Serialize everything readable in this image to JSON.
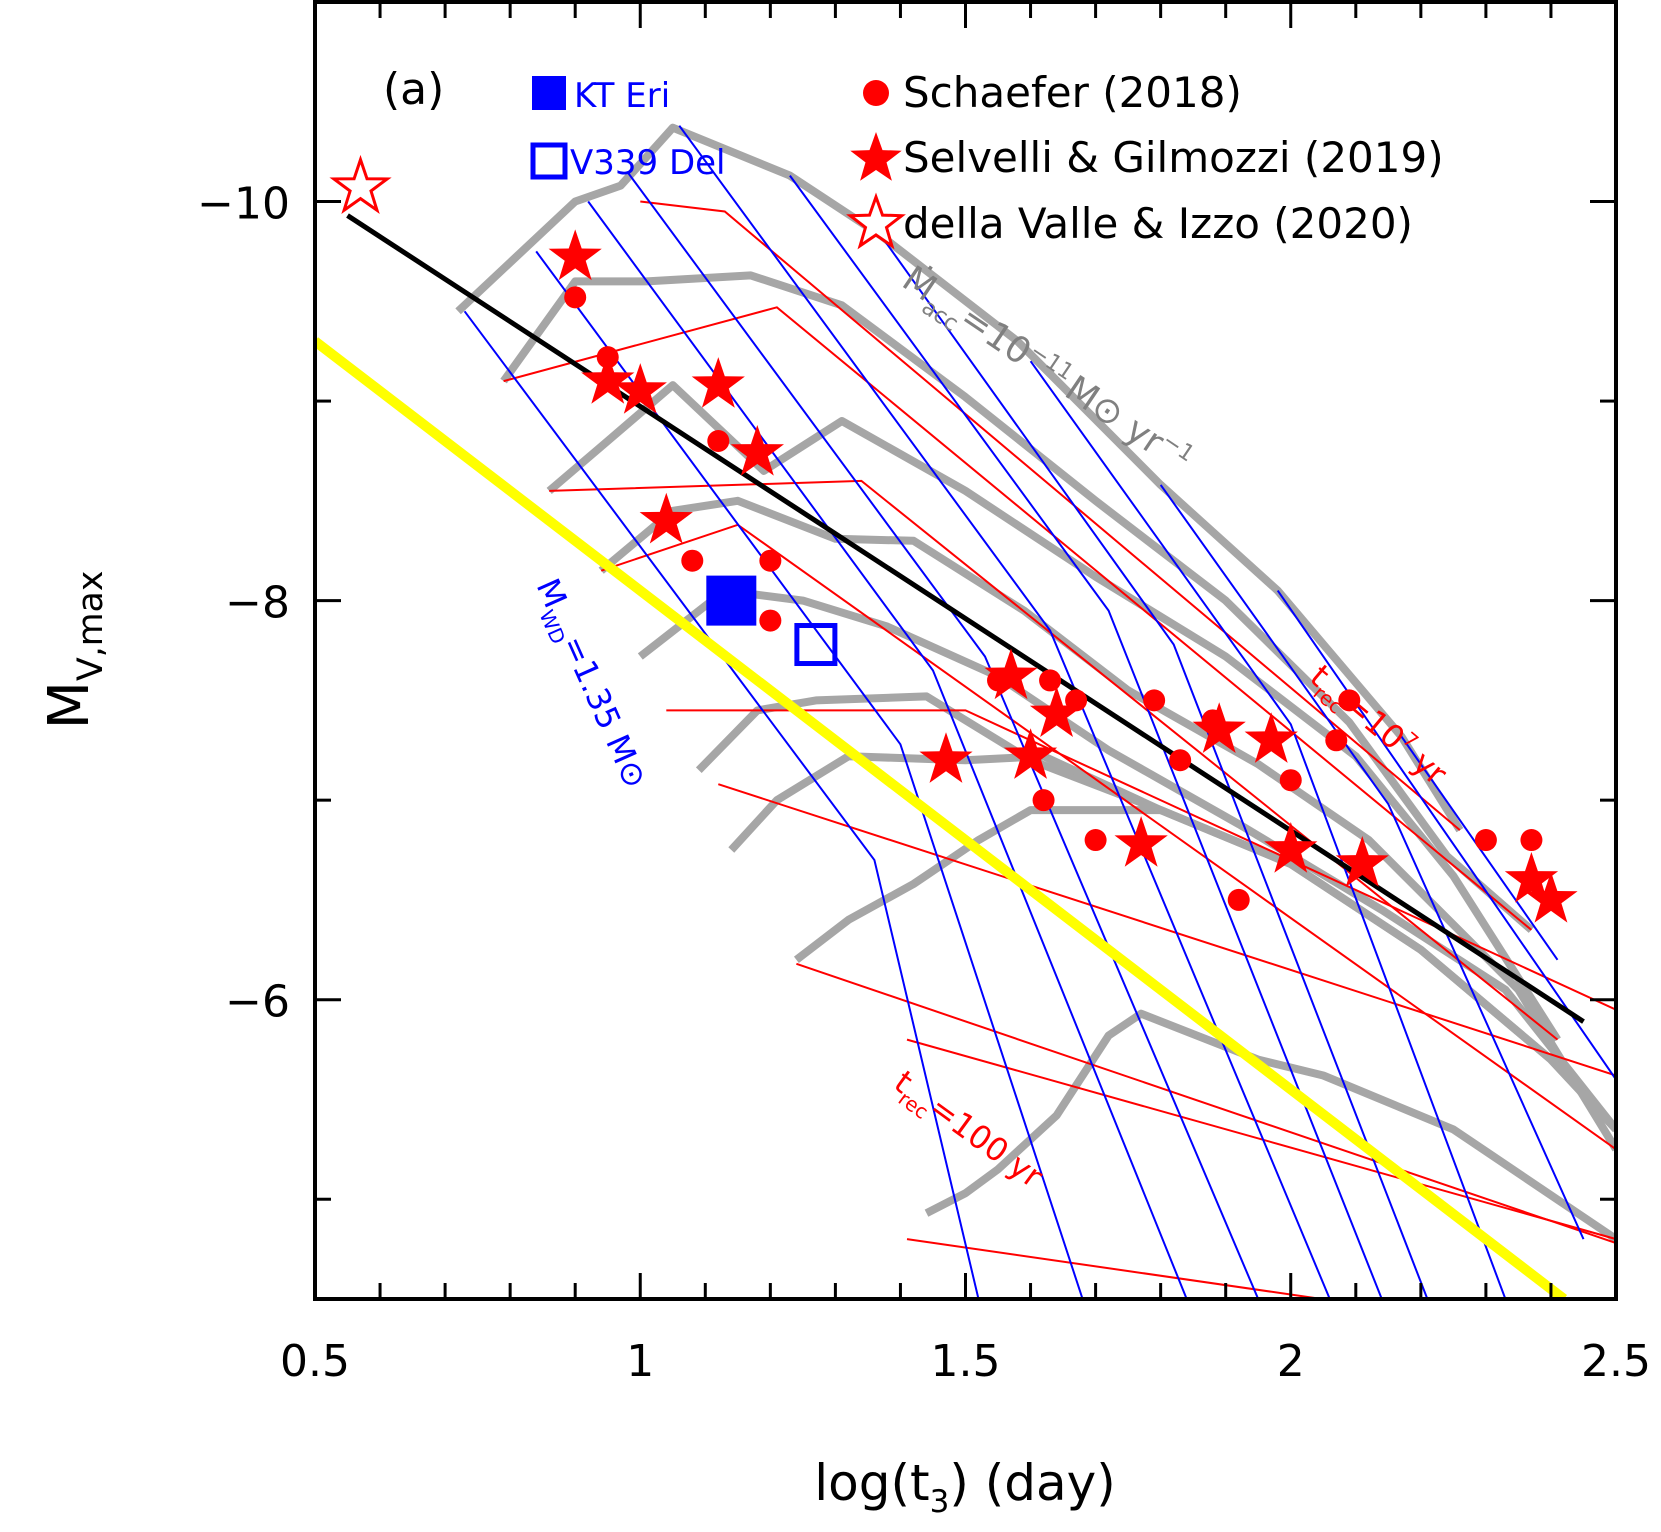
{
  "chart_data": {
    "type": "scatter",
    "panel_label": "(a)",
    "xlabel": "log(t",
    "xlabel_sub": "3",
    "xlabel_tail": ") (day)",
    "ylabel": "M",
    "ylabel_sub": "V,max",
    "xlim": [
      0.5,
      2.5
    ],
    "ylim": [
      -4.5,
      -11.0
    ],
    "y_inverted": true,
    "xticks": [
      0.5,
      1,
      1.5,
      2,
      2.5
    ],
    "xtick_labels": [
      "0.5",
      "1",
      "1.5",
      "2",
      "2.5"
    ],
    "yticks": [
      -10,
      -8,
      -6
    ],
    "ytick_labels": [
      "−10",
      "−8",
      "−6"
    ],
    "legend": {
      "kt_eri": "KT Eri",
      "v339_del": "V339 Del",
      "schaefer": "Schaefer (2018)",
      "selvelli": "Selvelli & Gilmozzi (2019)",
      "della_valle": "della Valle & Izzo (2020)"
    },
    "annotations": {
      "mdot_main": "Ṁ",
      "mdot_sub": "acc",
      "mdot_tail": "=10",
      "mdot_exp": "−11",
      "mdot_unit": "M⊙ yr",
      "mdot_unit_exp": "−1",
      "mwd_main": "M",
      "mwd_sub": "WD",
      "mwd_tail": "=1.35 M⊙",
      "trec_hi_main": "t",
      "trec_hi_sub": "rec",
      "trec_hi_tail": "=10",
      "trec_hi_exp": "7",
      "trec_hi_unit": " yr",
      "trec_lo_main": "t",
      "trec_lo_sub": "rec",
      "trec_lo_tail": "=100 yr"
    },
    "colors": {
      "schaefer": "#ff0000",
      "selvelli": "#ff0000",
      "della_valle": "#ff0000",
      "kt_eri": "#0000ff",
      "v339_del": "#0000ff",
      "fit_line": "#000000",
      "yellow_line": "#ffff00",
      "accretion_grid": "#a6a6a6",
      "wd_mass_grid": "#0000ff",
      "recurrence_grid": "#ff0000"
    },
    "series": [
      {
        "name": "Schaefer (2018)",
        "marker": "filled-circle",
        "points": [
          [
            0.9,
            -9.52
          ],
          [
            0.95,
            -9.22
          ],
          [
            1.12,
            -8.8
          ],
          [
            1.08,
            -8.2
          ],
          [
            1.2,
            -8.2
          ],
          [
            1.2,
            -7.9
          ],
          [
            1.55,
            -7.6
          ],
          [
            1.63,
            -7.6
          ],
          [
            1.67,
            -7.5
          ],
          [
            1.62,
            -7.0
          ],
          [
            1.7,
            -6.8
          ],
          [
            1.79,
            -7.5
          ],
          [
            1.83,
            -7.2
          ],
          [
            1.88,
            -7.4
          ],
          [
            1.92,
            -6.5
          ],
          [
            2.0,
            -7.1
          ],
          [
            2.07,
            -7.3
          ],
          [
            2.09,
            -7.5
          ],
          [
            2.3,
            -6.8
          ],
          [
            2.37,
            -6.8
          ]
        ]
      },
      {
        "name": "Selvelli & Gilmozzi (2019)",
        "marker": "filled-star",
        "points": [
          [
            0.9,
            -9.72
          ],
          [
            0.95,
            -9.1
          ],
          [
            1.0,
            -9.05
          ],
          [
            1.12,
            -9.08
          ],
          [
            1.18,
            -8.74
          ],
          [
            1.04,
            -8.4
          ],
          [
            1.57,
            -7.62
          ],
          [
            1.47,
            -7.2
          ],
          [
            1.6,
            -7.22
          ],
          [
            1.64,
            -7.43
          ],
          [
            1.77,
            -6.78
          ],
          [
            1.89,
            -7.35
          ],
          [
            1.97,
            -7.3
          ],
          [
            2.0,
            -6.75
          ],
          [
            2.11,
            -6.68
          ],
          [
            2.37,
            -6.6
          ],
          [
            2.4,
            -6.5
          ]
        ]
      },
      {
        "name": "della Valle & Izzo (2020)",
        "marker": "open-star",
        "points": [
          [
            0.57,
            -10.07
          ]
        ]
      },
      {
        "name": "KT Eri",
        "marker": "filled-square",
        "points": [
          [
            1.14,
            -8.0
          ]
        ]
      },
      {
        "name": "V339 Del",
        "marker": "open-square",
        "points": [
          [
            1.27,
            -7.78
          ]
        ]
      }
    ],
    "fit_line": [
      [
        0.55,
        -9.93
      ],
      [
        2.45,
        -5.89
      ]
    ],
    "yellow_line": [
      [
        0.5,
        -9.3
      ],
      [
        2.42,
        -4.5
      ]
    ],
    "accretion_curves": [
      [
        [
          0.72,
          -9.45
        ],
        [
          0.9,
          -10.0
        ],
        [
          0.97,
          -10.08
        ],
        [
          1.05,
          -10.37
        ],
        [
          1.23,
          -10.13
        ],
        [
          1.37,
          -9.83
        ],
        [
          1.58,
          -9.3
        ],
        [
          1.8,
          -8.58
        ],
        [
          1.98,
          -8.05
        ],
        [
          2.17,
          -7.32
        ],
        [
          2.26,
          -6.85
        ]
      ],
      [
        [
          0.79,
          -9.1
        ],
        [
          0.9,
          -9.6
        ],
        [
          1.01,
          -9.6
        ],
        [
          1.17,
          -9.63
        ],
        [
          1.31,
          -9.48
        ],
        [
          1.5,
          -9.02
        ],
        [
          1.7,
          -8.5
        ],
        [
          1.9,
          -8.0
        ],
        [
          2.09,
          -7.39
        ],
        [
          2.24,
          -6.72
        ],
        [
          2.37,
          -6.35
        ]
      ],
      [
        [
          0.86,
          -8.55
        ],
        [
          0.95,
          -8.8
        ],
        [
          1.05,
          -9.08
        ],
        [
          1.19,
          -8.65
        ],
        [
          1.31,
          -8.9
        ],
        [
          1.5,
          -8.55
        ],
        [
          1.7,
          -8.12
        ],
        [
          1.9,
          -7.72
        ],
        [
          2.1,
          -7.22
        ],
        [
          2.25,
          -6.62
        ],
        [
          2.41,
          -5.8
        ]
      ],
      [
        [
          0.94,
          -8.15
        ],
        [
          1.05,
          -8.45
        ],
        [
          1.15,
          -8.5
        ],
        [
          1.3,
          -8.31
        ],
        [
          1.42,
          -8.3
        ],
        [
          1.59,
          -7.95
        ],
        [
          1.75,
          -7.55
        ],
        [
          1.95,
          -7.18
        ],
        [
          2.12,
          -6.8
        ],
        [
          2.35,
          -6.05
        ],
        [
          2.5,
          -5.25
        ]
      ],
      [
        [
          1.0,
          -7.72
        ],
        [
          1.13,
          -8.05
        ],
        [
          1.25,
          -8.0
        ],
        [
          1.38,
          -7.87
        ],
        [
          1.55,
          -7.62
        ],
        [
          1.72,
          -7.25
        ],
        [
          1.92,
          -6.88
        ],
        [
          2.14,
          -6.45
        ],
        [
          2.33,
          -6.05
        ],
        [
          2.5,
          -5.35
        ]
      ],
      [
        [
          1.09,
          -7.15
        ],
        [
          1.18,
          -7.45
        ],
        [
          1.27,
          -7.5
        ],
        [
          1.44,
          -7.52
        ],
        [
          1.6,
          -7.2
        ],
        [
          1.8,
          -6.95
        ],
        [
          2.0,
          -6.68
        ],
        [
          2.2,
          -6.25
        ],
        [
          2.4,
          -5.7
        ],
        [
          2.5,
          -5.35
        ]
      ],
      [
        [
          1.14,
          -6.75
        ],
        [
          1.21,
          -7.0
        ],
        [
          1.32,
          -7.22
        ],
        [
          1.5,
          -7.2
        ],
        [
          1.62,
          -7.22
        ],
        [
          1.8,
          -6.95
        ],
        [
          2.0,
          -6.68
        ],
        [
          2.2,
          -6.25
        ],
        [
          2.4,
          -5.7
        ],
        [
          2.5,
          -5.35
        ]
      ],
      [
        [
          1.24,
          -6.2
        ],
        [
          1.32,
          -6.4
        ],
        [
          1.42,
          -6.58
        ],
        [
          1.52,
          -6.8
        ],
        [
          1.6,
          -6.95
        ],
        [
          1.8,
          -6.95
        ]
      ],
      [
        [
          1.44,
          -4.93
        ],
        [
          1.5,
          -5.03
        ],
        [
          1.55,
          -5.15
        ],
        [
          1.64,
          -5.42
        ],
        [
          1.72,
          -5.82
        ],
        [
          1.77,
          -5.93
        ],
        [
          1.95,
          -5.7
        ],
        [
          2.05,
          -5.62
        ],
        [
          2.25,
          -5.35
        ],
        [
          2.5,
          -4.8
        ]
      ]
    ],
    "wd_mass_lines": [
      [
        [
          0.73,
          -9.45
        ],
        [
          1.36,
          -6.7
        ],
        [
          1.52,
          -4.5
        ]
      ],
      [
        [
          0.84,
          -9.75
        ],
        [
          1.4,
          -7.28
        ],
        [
          1.68,
          -4.5
        ]
      ],
      [
        [
          0.92,
          -10.0
        ],
        [
          1.45,
          -7.65
        ],
        [
          1.84,
          -4.5
        ]
      ],
      [
        [
          0.98,
          -10.15
        ],
        [
          1.53,
          -7.72
        ],
        [
          1.95,
          -4.5
        ]
      ],
      [
        [
          1.06,
          -10.38
        ],
        [
          1.63,
          -7.85
        ],
        [
          2.06,
          -4.5
        ]
      ],
      [
        [
          1.23,
          -10.13
        ],
        [
          1.72,
          -7.95
        ],
        [
          2.14,
          -4.5
        ]
      ],
      [
        [
          1.37,
          -9.83
        ],
        [
          1.82,
          -7.78
        ],
        [
          2.21,
          -4.5
        ]
      ],
      [
        [
          1.6,
          -9.2
        ],
        [
          2.0,
          -7.38
        ],
        [
          2.33,
          -4.5
        ]
      ],
      [
        [
          1.8,
          -8.58
        ],
        [
          2.15,
          -6.98
        ],
        [
          2.45,
          -4.8
        ]
      ],
      [
        [
          1.98,
          -8.05
        ],
        [
          2.32,
          -6.45
        ],
        [
          2.5,
          -5.6
        ]
      ],
      [
        [
          2.17,
          -7.32
        ],
        [
          2.41,
          -6.2
        ]
      ]
    ],
    "recurrence_lines": [
      [
        [
          1.0,
          -10.0
        ],
        [
          1.13,
          -9.95
        ],
        [
          2.26,
          -6.85
        ]
      ],
      [
        [
          0.79,
          -9.1
        ],
        [
          1.21,
          -9.47
        ],
        [
          2.37,
          -6.35
        ]
      ],
      [
        [
          0.86,
          -8.55
        ],
        [
          1.34,
          -8.6
        ],
        [
          2.41,
          -5.8
        ]
      ],
      [
        [
          0.94,
          -8.15
        ],
        [
          1.15,
          -8.38
        ],
        [
          2.5,
          -5.25
        ]
      ],
      [
        [
          1.04,
          -7.45
        ],
        [
          1.5,
          -7.45
        ],
        [
          2.5,
          -5.95
        ]
      ],
      [
        [
          1.12,
          -7.08
        ],
        [
          2.5,
          -5.62
        ]
      ],
      [
        [
          1.24,
          -6.18
        ],
        [
          2.5,
          -4.78
        ]
      ],
      [
        [
          1.41,
          -5.8
        ],
        [
          2.5,
          -4.8
        ]
      ],
      [
        [
          1.41,
          -4.8
        ],
        [
          2.09,
          -4.48
        ]
      ]
    ]
  }
}
